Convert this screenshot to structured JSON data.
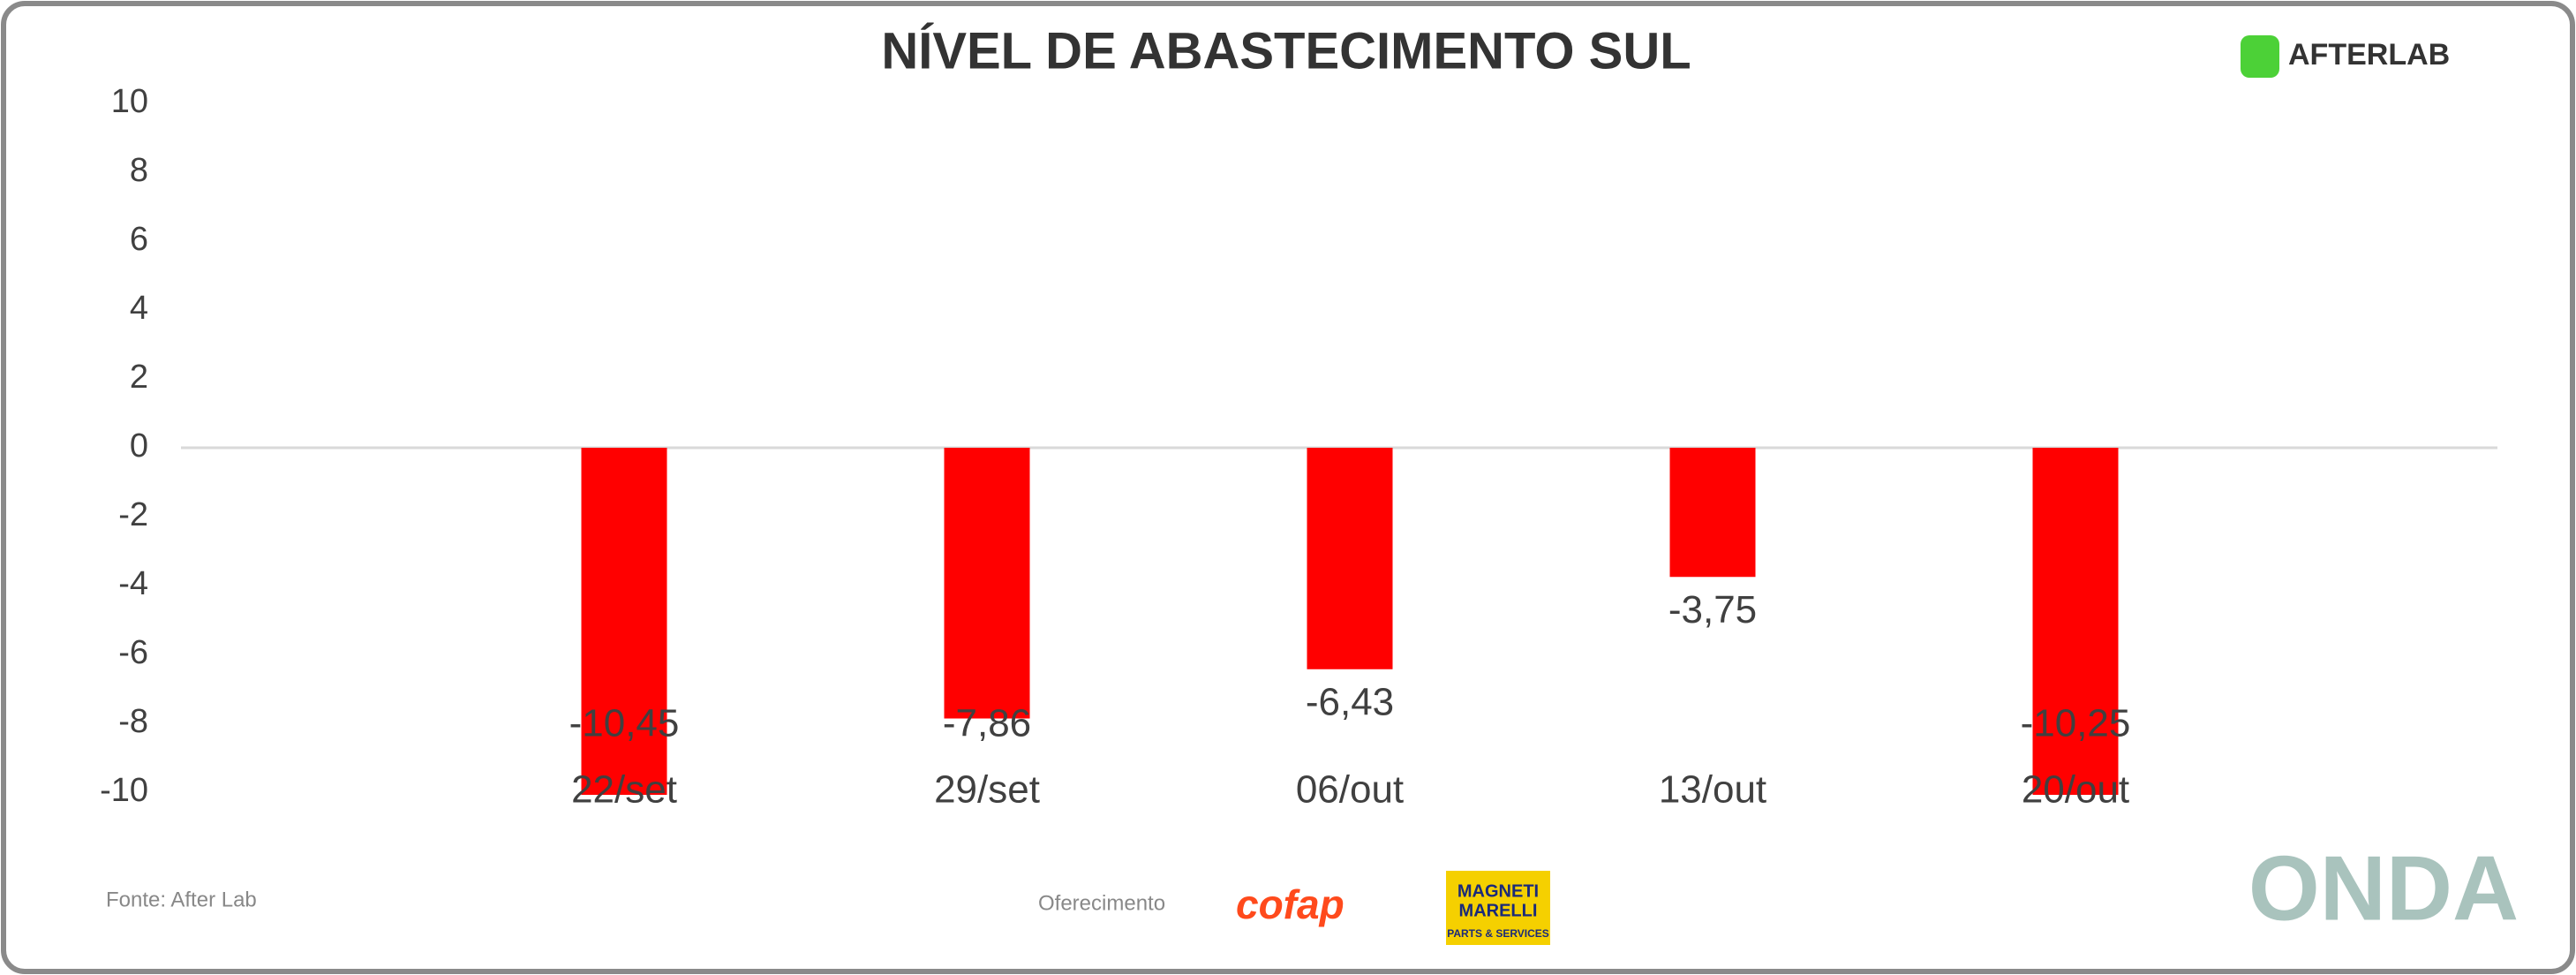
{
  "chart_data": {
    "type": "bar",
    "title": "NÍVEL DE ABASTECIMENTO SUL",
    "categories": [
      "22/set",
      "29/set",
      "06/out",
      "13/out",
      "20/out"
    ],
    "values": [
      -10.45,
      -7.86,
      -6.43,
      -3.75,
      -10.25
    ],
    "value_labels": [
      "-10,45",
      "-7,86",
      "-6,43",
      "-3,75",
      "-10,25"
    ],
    "color": "#ff0000",
    "ylim": [
      -10,
      10
    ],
    "yticks": [
      -10,
      -8,
      -6,
      -4,
      -2,
      0,
      2,
      4,
      6,
      8,
      10
    ],
    "grid": false
  },
  "branding": {
    "logo": "AFTERLAB",
    "source": "Fonte: After Lab",
    "sponsor_label": "Oferecimento",
    "sponsor_1": "cofap",
    "sponsor_2_line_1": "MAGNETI",
    "sponsor_2_line_2": "MARELLI",
    "sponsor_2_line_3": "PARTS & SERVICES",
    "footer_logo": "ONDA"
  }
}
